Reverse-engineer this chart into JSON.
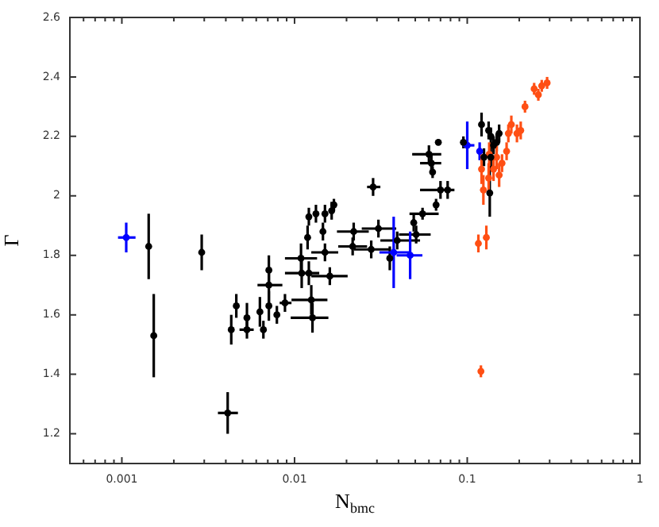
{
  "chart_data": {
    "type": "scatter",
    "xlabel": "N$_{bmc}$",
    "ylabel": "Γ",
    "log": "x",
    "grid": false,
    "legend": false,
    "marker": "circle",
    "xlim": [
      0.0005,
      1
    ],
    "ylim": [
      1.1,
      2.6
    ],
    "xticks": [
      {
        "value": 0.0006,
        "label": null
      },
      {
        "value": 0.0007,
        "label": null
      },
      {
        "value": 0.0008,
        "label": null
      },
      {
        "value": 0.0009,
        "label": null
      },
      0.001,
      {
        "value": 0.002,
        "label": null
      },
      {
        "value": 0.003,
        "label": null
      },
      {
        "value": 0.004,
        "label": null
      },
      {
        "value": 0.005,
        "label": null
      },
      {
        "value": 0.006,
        "label": null
      },
      {
        "value": 0.007,
        "label": null
      },
      {
        "value": 0.008,
        "label": null
      },
      {
        "value": 0.009,
        "label": null
      },
      0.01,
      {
        "value": 0.02,
        "label": null
      },
      {
        "value": 0.03,
        "label": null
      },
      {
        "value": 0.04,
        "label": null
      },
      {
        "value": 0.05,
        "label": null
      },
      {
        "value": 0.06,
        "label": null
      },
      {
        "value": 0.07,
        "label": null
      },
      {
        "value": 0.08,
        "label": null
      },
      {
        "value": 0.09,
        "label": null
      },
      0.1,
      {
        "value": 0.2,
        "label": null
      },
      {
        "value": 0.3,
        "label": null
      },
      {
        "value": 0.4,
        "label": null
      },
      {
        "value": 0.5,
        "label": null
      },
      {
        "value": 0.6,
        "label": null
      },
      {
        "value": 0.7,
        "label": null
      },
      {
        "value": 0.8,
        "label": null
      },
      {
        "value": 0.9,
        "label": null
      },
      1
    ],
    "yticks": [
      1.2,
      1.4,
      1.6,
      1.8,
      2,
      2.2,
      2.4,
      2.6
    ],
    "series": [
      {
        "color": "#000000",
        "x": [
          0.00143,
          0.00153,
          0.0029,
          0.0041,
          0.0043,
          0.0046,
          0.0053,
          0.0053,
          0.0063,
          0.0066,
          0.0071,
          0.0071,
          0.0071,
          0.0079,
          0.0088,
          0.0109,
          0.011,
          0.0121,
          0.0119,
          0.0121,
          0.0133,
          0.0146,
          0.015,
          0.015,
          0.016,
          0.0125,
          0.0127,
          0.0164,
          0.0169,
          0.022,
          0.0217,
          0.0278,
          0.0285,
          0.0306,
          0.0356,
          0.0393,
          0.0506,
          0.049,
          0.0551,
          0.066,
          0.07,
          0.077,
          0.063,
          0.062,
          0.06,
          0.068,
          0.095,
          0.121,
          0.133,
          0.137,
          0.142,
          0.137,
          0.148,
          0.135,
          0.153,
          0.125
        ],
        "values": [
          1.83,
          1.53,
          1.81,
          1.27,
          1.55,
          1.63,
          1.55,
          1.59,
          1.61,
          1.55,
          1.63,
          1.7,
          1.75,
          1.6,
          1.64,
          1.79,
          1.74,
          1.74,
          1.86,
          1.93,
          1.94,
          1.88,
          1.94,
          1.81,
          1.73,
          1.65,
          1.59,
          1.95,
          1.97,
          1.88,
          1.83,
          1.82,
          2.03,
          1.89,
          1.79,
          1.85,
          1.87,
          1.91,
          1.94,
          1.97,
          2.02,
          2.02,
          2.08,
          2.11,
          2.14,
          2.18,
          2.18,
          2.24,
          2.22,
          2.2,
          2.17,
          2.13,
          2.18,
          2.01,
          2.21,
          2.13
        ],
        "errors": [
          0.11,
          0.14,
          0.06,
          0.07,
          0.05,
          0.04,
          0.03,
          0.05,
          0.05,
          0.03,
          0.05,
          0.06,
          0.05,
          0.03,
          0.03,
          0.05,
          0.05,
          0.04,
          0.04,
          0.03,
          0.03,
          0.03,
          0.03,
          0.03,
          0.03,
          0.05,
          0.05,
          0.03,
          0.02,
          0.03,
          0.03,
          0.03,
          0.03,
          0.03,
          0.04,
          0.03,
          0.03,
          0.03,
          0.02,
          0.02,
          0.03,
          0.03,
          0.02,
          0.03,
          0.03,
          0.01,
          0.02,
          0.04,
          0.03,
          0.03,
          0.03,
          0.04,
          0.03,
          0.08,
          0.03,
          0.03
        ],
        "xerrors": [
          null,
          null,
          null,
          [
            0.0036,
            0.0047
          ],
          null,
          null,
          [
            0.0048,
            0.0058
          ],
          null,
          null,
          null,
          null,
          [
            0.0061,
            0.0085
          ],
          null,
          null,
          [
            0.0082,
            0.0096
          ],
          [
            0.0088,
            0.0135
          ],
          [
            0.0088,
            0.0139
          ],
          null,
          null,
          null,
          null,
          null,
          null,
          [
            0.0125,
            0.0179
          ],
          [
            0.0125,
            0.0203
          ],
          [
            0.0096,
            0.0155
          ],
          [
            0.0095,
            0.0157
          ],
          null,
          null,
          [
            0.0176,
            0.0269
          ],
          [
            0.0179,
            0.0263
          ],
          [
            0.0221,
            0.0361
          ],
          [
            0.0263,
            0.0314
          ],
          [
            0.0245,
            0.0388
          ],
          null,
          [
            0.0314,
            0.0533
          ],
          [
            0.0402,
            0.0614
          ],
          null,
          [
            0.0463,
            0.0683
          ],
          null,
          null,
          [
            0.0533,
            0.0843
          ],
          null,
          [
            0.0533,
            0.0707
          ],
          [
            0.048,
            0.0707
          ],
          null,
          null,
          null,
          null,
          null,
          null,
          null,
          null,
          null,
          null,
          null
        ]
      },
      {
        "color": "#0000ff",
        "x": [
          0.00106,
          0.0375,
          0.0467,
          0.1,
          0.118
        ],
        "values": [
          1.86,
          1.81,
          1.8,
          2.17,
          2.15
        ],
        "errors": [
          0.05,
          0.12,
          0.08,
          0.08,
          0.03
        ],
        "xerrors": [
          [
            0.00095,
            0.0012
          ],
          [
            0.031,
            0.046
          ],
          [
            0.039,
            0.055
          ],
          [
            0.094,
            0.11
          ],
          null
        ]
      },
      {
        "color": "#ff4f14",
        "x": [
          0.12,
          0.116,
          0.129,
          0.124,
          0.133,
          0.142,
          0.148,
          0.153,
          0.159,
          0.169,
          0.173,
          0.18,
          0.194,
          0.204,
          0.216,
          0.244,
          0.258,
          0.27,
          0.29,
          0.121,
          0.134
        ],
        "values": [
          1.41,
          1.84,
          1.86,
          2.02,
          2.06,
          2.09,
          2.13,
          2.07,
          2.11,
          2.15,
          2.21,
          2.24,
          2.21,
          2.22,
          2.3,
          2.36,
          2.34,
          2.37,
          2.38,
          2.09,
          2.14
        ],
        "errors": [
          0.02,
          0.03,
          0.04,
          0.05,
          0.05,
          0.04,
          0.04,
          0.04,
          0.03,
          0.03,
          0.03,
          0.03,
          0.03,
          0.03,
          0.02,
          0.02,
          0.02,
          0.02,
          0.02,
          0.05,
          0.04
        ]
      }
    ]
  }
}
